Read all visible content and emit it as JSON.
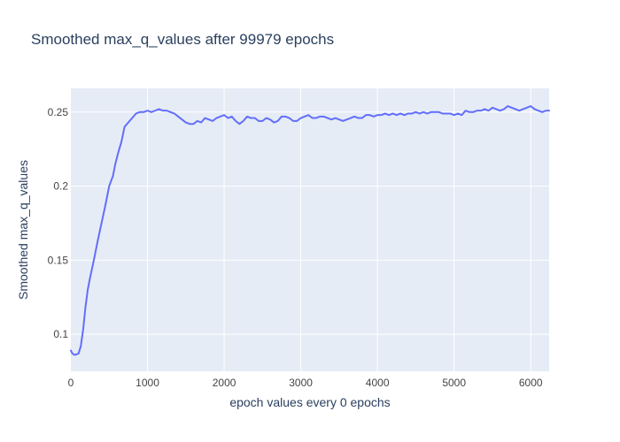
{
  "colors": {
    "plot_bg": "#e5ecf6",
    "grid": "#ffffff",
    "line": "#636efa",
    "text": "#2a3f5f",
    "tick_text": "#444444"
  },
  "chart_data": {
    "type": "line",
    "title": "Smoothed max_q_values after 99979 epochs",
    "xlabel": "epoch values every 0 epochs",
    "ylabel": "Smoothed max_q_values",
    "xlim": [
      0,
      6240
    ],
    "ylim": [
      0.075,
      0.266
    ],
    "x_ticks": [
      0,
      1000,
      2000,
      3000,
      4000,
      5000,
      6000
    ],
    "x_tick_labels": [
      "0",
      "1000",
      "2000",
      "3000",
      "4000",
      "5000",
      "6000"
    ],
    "y_ticks": [
      0.1,
      0.15,
      0.2,
      0.25
    ],
    "y_tick_labels": [
      "0.1",
      "0.15",
      "0.2",
      "0.25"
    ],
    "grid": true,
    "legend": "none",
    "series": [
      {
        "x": [
          0,
          20,
          50,
          100,
          130,
          160,
          190,
          220,
          250,
          300,
          350,
          400,
          450,
          500,
          550,
          580,
          620,
          660,
          700,
          750,
          800,
          850,
          900,
          950,
          1000,
          1050,
          1100,
          1150,
          1200,
          1250,
          1300,
          1350,
          1400,
          1450,
          1500,
          1550,
          1600,
          1650,
          1700,
          1750,
          1800,
          1850,
          1900,
          1950,
          2000,
          2050,
          2100,
          2150,
          2200,
          2250,
          2300,
          2350,
          2400,
          2450,
          2500,
          2550,
          2600,
          2650,
          2700,
          2750,
          2800,
          2850,
          2900,
          2950,
          3000,
          3050,
          3100,
          3150,
          3200,
          3250,
          3300,
          3350,
          3400,
          3450,
          3500,
          3550,
          3600,
          3650,
          3700,
          3750,
          3800,
          3850,
          3900,
          3950,
          4000,
          4050,
          4100,
          4150,
          4200,
          4250,
          4300,
          4350,
          4400,
          4450,
          4500,
          4550,
          4600,
          4650,
          4700,
          4750,
          4800,
          4850,
          4900,
          4950,
          5000,
          5050,
          5100,
          5150,
          5200,
          5250,
          5300,
          5350,
          5400,
          5450,
          5500,
          5550,
          5600,
          5650,
          5700,
          5750,
          5800,
          5850,
          5900,
          5950,
          6000,
          6050,
          6100,
          6150,
          6200,
          6240
        ],
        "y": [
          0.089,
          0.087,
          0.086,
          0.087,
          0.092,
          0.103,
          0.118,
          0.13,
          0.138,
          0.15,
          0.163,
          0.175,
          0.187,
          0.2,
          0.207,
          0.215,
          0.223,
          0.23,
          0.24,
          0.243,
          0.246,
          0.249,
          0.25,
          0.25,
          0.251,
          0.25,
          0.251,
          0.252,
          0.251,
          0.251,
          0.25,
          0.249,
          0.247,
          0.245,
          0.243,
          0.242,
          0.242,
          0.244,
          0.243,
          0.246,
          0.245,
          0.244,
          0.246,
          0.247,
          0.248,
          0.246,
          0.247,
          0.244,
          0.242,
          0.244,
          0.247,
          0.246,
          0.246,
          0.244,
          0.244,
          0.246,
          0.245,
          0.243,
          0.244,
          0.247,
          0.247,
          0.246,
          0.244,
          0.244,
          0.246,
          0.247,
          0.248,
          0.246,
          0.246,
          0.247,
          0.247,
          0.246,
          0.245,
          0.246,
          0.245,
          0.244,
          0.245,
          0.246,
          0.247,
          0.246,
          0.246,
          0.248,
          0.248,
          0.247,
          0.248,
          0.248,
          0.249,
          0.248,
          0.249,
          0.248,
          0.249,
          0.248,
          0.249,
          0.249,
          0.25,
          0.249,
          0.25,
          0.249,
          0.25,
          0.25,
          0.25,
          0.249,
          0.249,
          0.249,
          0.248,
          0.249,
          0.248,
          0.251,
          0.25,
          0.25,
          0.251,
          0.251,
          0.252,
          0.251,
          0.253,
          0.252,
          0.251,
          0.252,
          0.254,
          0.253,
          0.252,
          0.251,
          0.252,
          0.253,
          0.254,
          0.252,
          0.251,
          0.25,
          0.251,
          0.251
        ]
      }
    ]
  }
}
